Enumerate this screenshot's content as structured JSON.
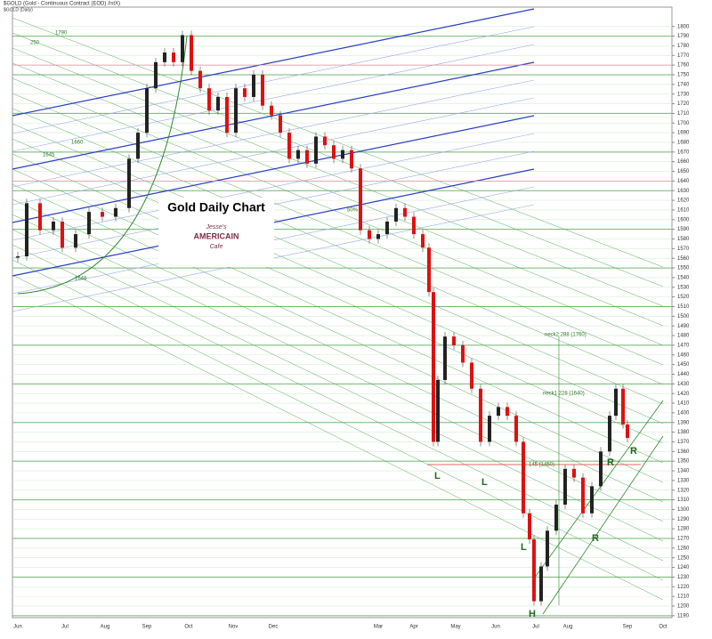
{
  "chart_data": {
    "type": "candlestick",
    "header": "$GOLD (Gold - Continuous Contract (EOD) #stX)",
    "subheader": "$GOLD (Daily)",
    "title": "Gold Daily Chart",
    "logo": [
      "Jesse's",
      "AMERICAIN",
      "Cafe"
    ],
    "up_color": "#222222",
    "down_color": "#e01010",
    "closes": [
      1562,
      1617,
      1589,
      1598,
      1571,
      1585,
      1608,
      1603,
      1612,
      1663,
      1690,
      1736,
      1763,
      1773,
      1763,
      1791,
      1754,
      1736,
      1713,
      1727,
      1690,
      1736,
      1727,
      1750,
      1718,
      1708,
      1690,
      1663,
      1672,
      1658,
      1686,
      1677,
      1663,
      1672,
      1653,
      1589,
      1580,
      1585,
      1598,
      1612,
      1603,
      1585,
      1571,
      1525,
      1370,
      1434,
      1479,
      1470,
      1452,
      1425,
      1370,
      1397,
      1406,
      1397,
      1370,
      1296,
      1269,
      1205,
      1241,
      1278,
      1305,
      1342,
      1333,
      1296,
      1324,
      1360,
      1397,
      1425,
      1388,
      1374
    ],
    "x_labels": [
      "Jun",
      "Jul",
      "Aug",
      "Sep",
      "Oct",
      "Nov",
      "Dec",
      "Mar",
      "Apr",
      "May",
      "Jun",
      "Jul",
      "Aug",
      "Sep",
      "Oct"
    ],
    "ylim": [
      1188,
      1820
    ],
    "yticks": [
      1190,
      1200,
      1210,
      1220,
      1230,
      1240,
      1250,
      1260,
      1270,
      1280,
      1290,
      1300,
      1310,
      1320,
      1330,
      1340,
      1350,
      1360,
      1370,
      1380,
      1390,
      1400,
      1410,
      1420,
      1430,
      1440,
      1450,
      1460,
      1470,
      1480,
      1490,
      1500,
      1510,
      1520,
      1530,
      1540,
      1550,
      1560,
      1570,
      1580,
      1590,
      1600,
      1610,
      1620,
      1630,
      1640,
      1650,
      1660,
      1670,
      1680,
      1690,
      1700,
      1710,
      1720,
      1730,
      1740,
      1750,
      1760,
      1770,
      1780,
      1790,
      1800
    ],
    "grid": true,
    "annotations": [
      "L",
      "L",
      "L",
      "H",
      "R",
      "R",
      "R",
      "neck2 288 (1760)",
      "neck1 228 (1640)",
      "145 (1450)",
      "50%",
      "1790",
      "250",
      "1660",
      "1645",
      "1648"
    ]
  }
}
